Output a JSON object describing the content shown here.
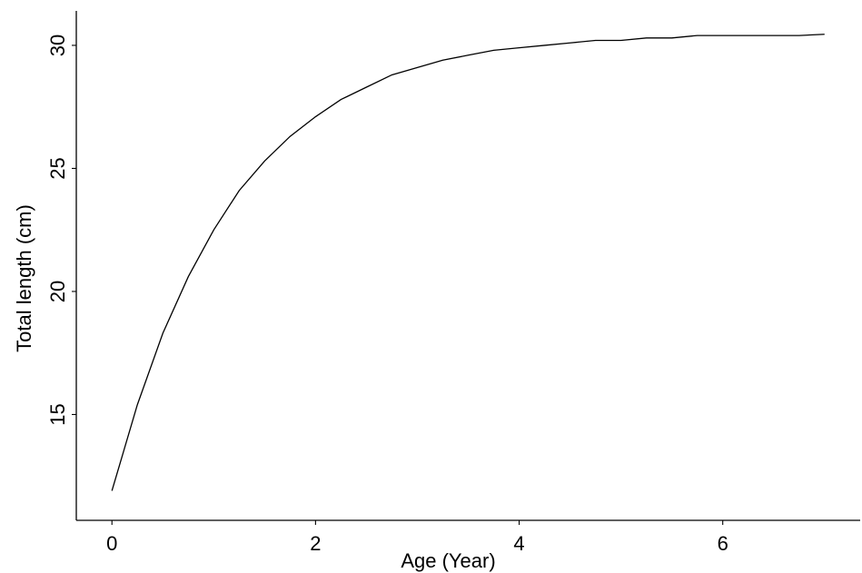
{
  "chart_data": {
    "type": "line",
    "title": "",
    "xlabel": "Age (Year)",
    "ylabel": "Total length (cm)",
    "xlim": [
      -0.35,
      7.35
    ],
    "ylim": [
      10.7,
      31.4
    ],
    "xticks": [
      0,
      2,
      4,
      6
    ],
    "yticks": [
      15,
      20,
      25,
      30
    ],
    "xtick_labels": [
      "0",
      "2",
      "4",
      "6"
    ],
    "ytick_labels": [
      "15",
      "20",
      "25",
      "30"
    ],
    "grid": false,
    "legend": "none",
    "line_color": "#000000",
    "series": [
      {
        "x": [
          0,
          0.25,
          0.5,
          0.75,
          1.0,
          1.25,
          1.5,
          1.75,
          2.0,
          2.25,
          2.5,
          2.75,
          3.0,
          3.25,
          3.5,
          3.75,
          4.0,
          4.25,
          4.5,
          4.75,
          5.0,
          5.25,
          5.5,
          5.75,
          6.0,
          6.25,
          6.5,
          6.75,
          7.0
        ],
        "y": [
          11.9,
          15.4,
          18.3,
          20.6,
          22.5,
          24.1,
          25.3,
          26.3,
          27.1,
          27.8,
          28.3,
          28.8,
          29.1,
          29.4,
          29.6,
          29.8,
          29.9,
          30.0,
          30.1,
          30.2,
          30.2,
          30.3,
          30.3,
          30.4,
          30.4,
          30.4,
          30.4,
          30.4,
          30.45
        ]
      }
    ]
  }
}
